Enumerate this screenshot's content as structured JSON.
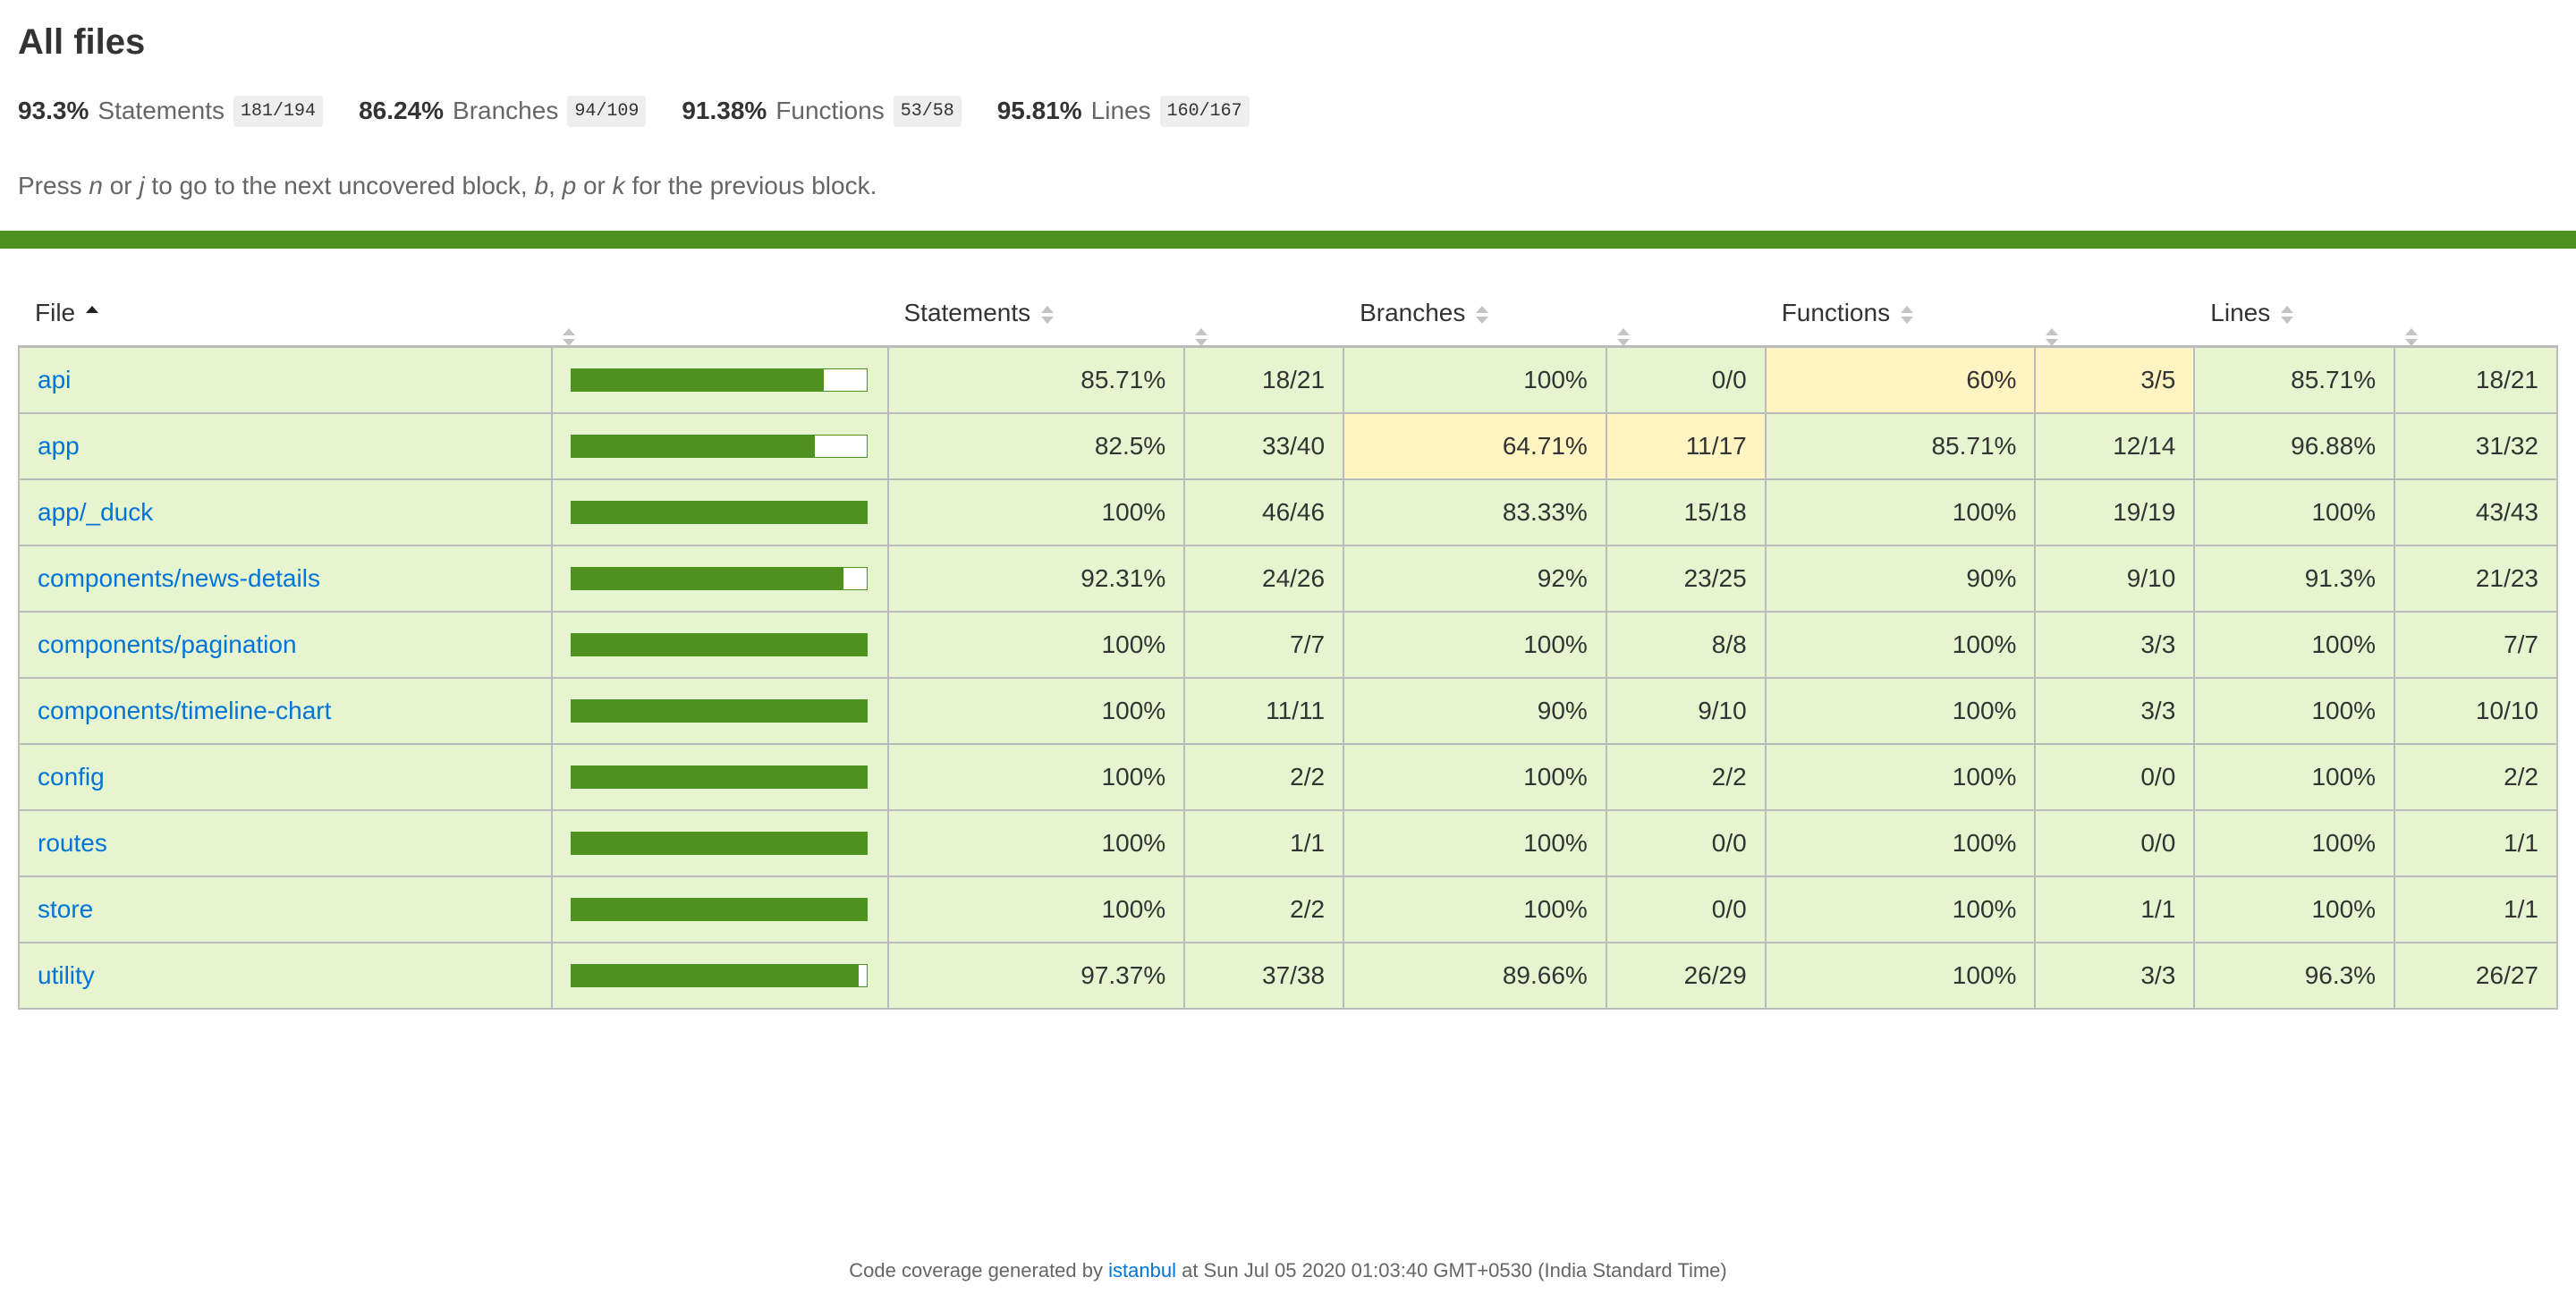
{
  "title": "All files",
  "summary": [
    {
      "pct": "93.3%",
      "label": "Statements",
      "fraction": "181/194"
    },
    {
      "pct": "86.24%",
      "label": "Branches",
      "fraction": "94/109"
    },
    {
      "pct": "91.38%",
      "label": "Functions",
      "fraction": "53/58"
    },
    {
      "pct": "95.81%",
      "label": "Lines",
      "fraction": "160/167"
    }
  ],
  "hint": {
    "t1": "Press ",
    "k1": "n",
    "t2": " or ",
    "k2": "j",
    "t3": " to go to the next uncovered block, ",
    "k3": "b",
    "t4": ", ",
    "k4": "p",
    "t5": " or ",
    "k5": "k",
    "t6": " for the previous block."
  },
  "table": {
    "headers": {
      "file": "File",
      "statements": "Statements",
      "branches": "Branches",
      "functions": "Functions",
      "lines": "Lines"
    },
    "rows": [
      {
        "file": "api",
        "coverage": 0.8571,
        "stmt_pct": "85.71%",
        "stmt_frac": "18/21",
        "br_pct": "100%",
        "br_frac": "0/0",
        "fn_pct": "60%",
        "fn_frac": "3/5",
        "ln_pct": "85.71%",
        "ln_frac": "18/21",
        "levels": [
          "high",
          "high",
          "medium",
          "high"
        ]
      },
      {
        "file": "app",
        "coverage": 0.825,
        "stmt_pct": "82.5%",
        "stmt_frac": "33/40",
        "br_pct": "64.71%",
        "br_frac": "11/17",
        "fn_pct": "85.71%",
        "fn_frac": "12/14",
        "ln_pct": "96.88%",
        "ln_frac": "31/32",
        "levels": [
          "high",
          "medium",
          "high",
          "high"
        ]
      },
      {
        "file": "app/_duck",
        "coverage": 1.0,
        "stmt_pct": "100%",
        "stmt_frac": "46/46",
        "br_pct": "83.33%",
        "br_frac": "15/18",
        "fn_pct": "100%",
        "fn_frac": "19/19",
        "ln_pct": "100%",
        "ln_frac": "43/43",
        "levels": [
          "high",
          "high",
          "high",
          "high"
        ]
      },
      {
        "file": "components/news-details",
        "coverage": 0.9231,
        "stmt_pct": "92.31%",
        "stmt_frac": "24/26",
        "br_pct": "92%",
        "br_frac": "23/25",
        "fn_pct": "90%",
        "fn_frac": "9/10",
        "ln_pct": "91.3%",
        "ln_frac": "21/23",
        "levels": [
          "high",
          "high",
          "high",
          "high"
        ]
      },
      {
        "file": "components/pagination",
        "coverage": 1.0,
        "stmt_pct": "100%",
        "stmt_frac": "7/7",
        "br_pct": "100%",
        "br_frac": "8/8",
        "fn_pct": "100%",
        "fn_frac": "3/3",
        "ln_pct": "100%",
        "ln_frac": "7/7",
        "levels": [
          "high",
          "high",
          "high",
          "high"
        ]
      },
      {
        "file": "components/timeline-chart",
        "coverage": 1.0,
        "stmt_pct": "100%",
        "stmt_frac": "11/11",
        "br_pct": "90%",
        "br_frac": "9/10",
        "fn_pct": "100%",
        "fn_frac": "3/3",
        "ln_pct": "100%",
        "ln_frac": "10/10",
        "levels": [
          "high",
          "high",
          "high",
          "high"
        ]
      },
      {
        "file": "config",
        "coverage": 1.0,
        "stmt_pct": "100%",
        "stmt_frac": "2/2",
        "br_pct": "100%",
        "br_frac": "2/2",
        "fn_pct": "100%",
        "fn_frac": "0/0",
        "ln_pct": "100%",
        "ln_frac": "2/2",
        "levels": [
          "high",
          "high",
          "high",
          "high"
        ]
      },
      {
        "file": "routes",
        "coverage": 1.0,
        "stmt_pct": "100%",
        "stmt_frac": "1/1",
        "br_pct": "100%",
        "br_frac": "0/0",
        "fn_pct": "100%",
        "fn_frac": "0/0",
        "ln_pct": "100%",
        "ln_frac": "1/1",
        "levels": [
          "high",
          "high",
          "high",
          "high"
        ]
      },
      {
        "file": "store",
        "coverage": 1.0,
        "stmt_pct": "100%",
        "stmt_frac": "2/2",
        "br_pct": "100%",
        "br_frac": "0/0",
        "fn_pct": "100%",
        "fn_frac": "1/1",
        "ln_pct": "100%",
        "ln_frac": "1/1",
        "levels": [
          "high",
          "high",
          "high",
          "high"
        ]
      },
      {
        "file": "utility",
        "coverage": 0.9737,
        "stmt_pct": "97.37%",
        "stmt_frac": "37/38",
        "br_pct": "89.66%",
        "br_frac": "26/29",
        "fn_pct": "100%",
        "fn_frac": "3/3",
        "ln_pct": "96.3%",
        "ln_frac": "26/27",
        "levels": [
          "high",
          "high",
          "high",
          "high"
        ]
      }
    ]
  },
  "footer": {
    "prefix": "Code coverage generated by ",
    "link": "istanbul",
    "suffix": " at Sun Jul 05 2020 01:03:40 GMT+0530 (India Standard Time)"
  },
  "colors": {
    "bar": "#4d921f",
    "high": "#e6f5d0",
    "medium": "#fff4c2",
    "link": "#0074d9"
  },
  "icons": {
    "sort_asc": "sort-ascending-icon",
    "sort_both": "sort-icon"
  }
}
